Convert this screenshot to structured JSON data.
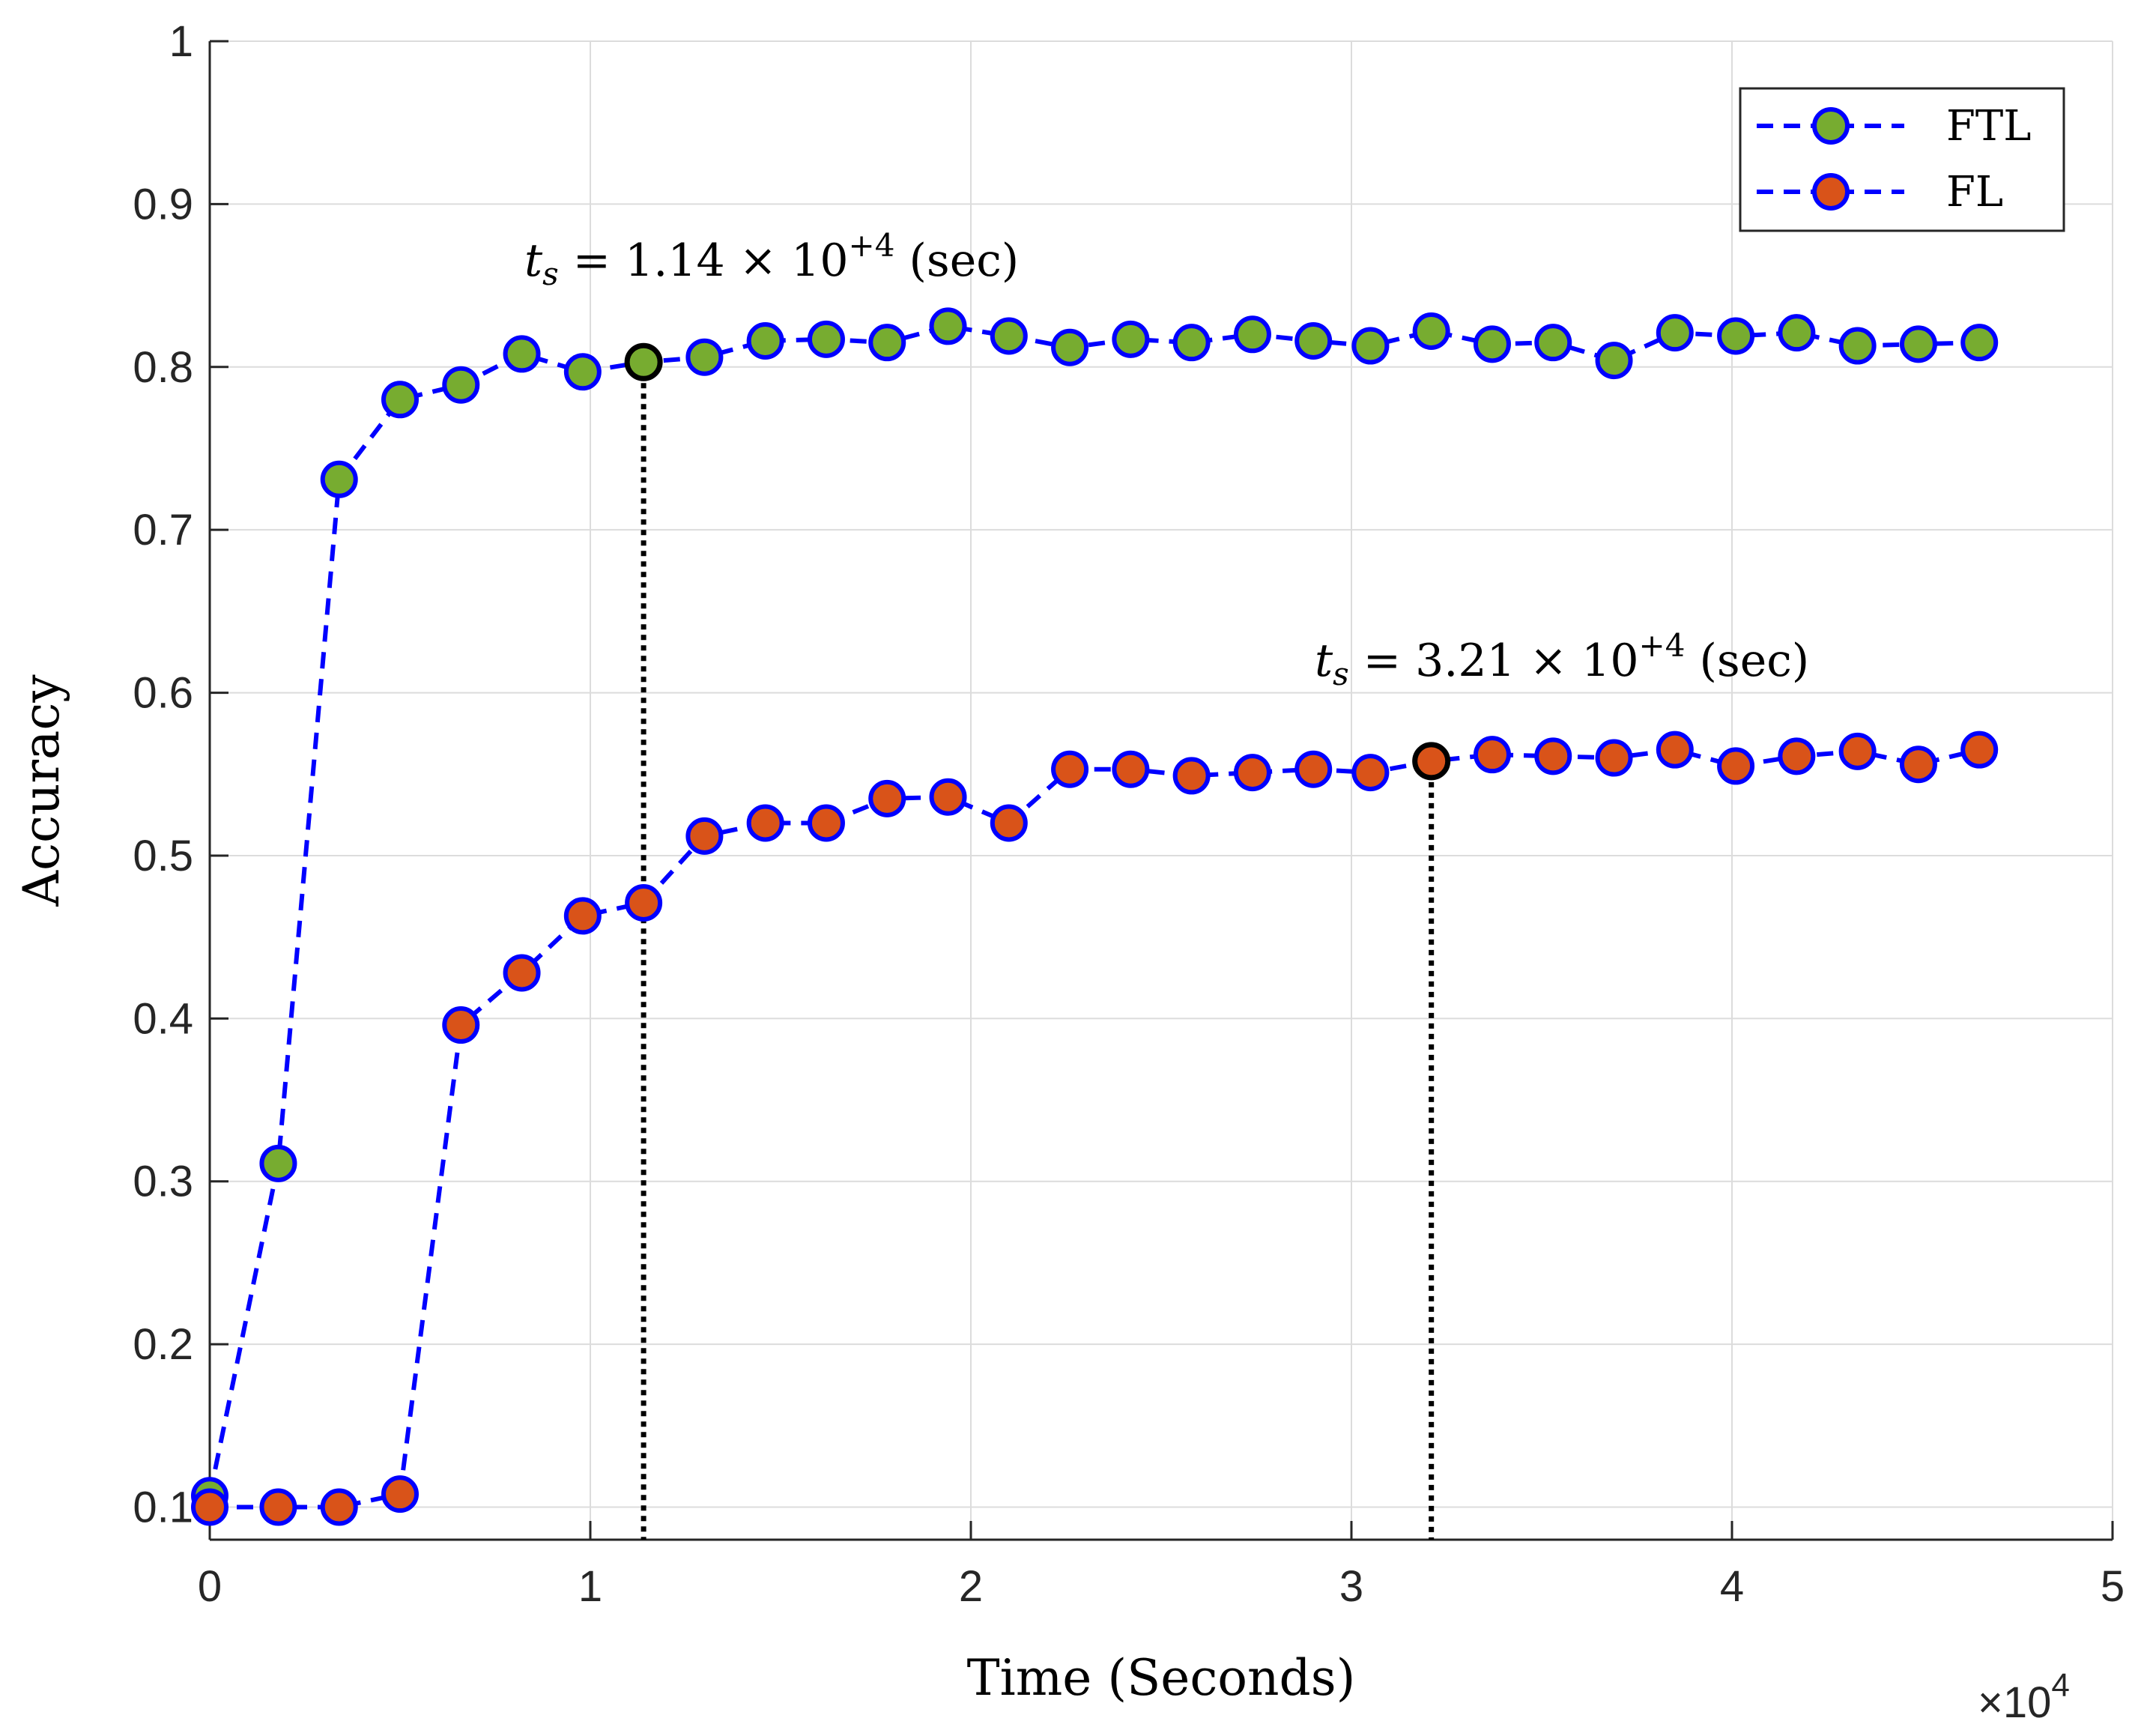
{
  "chart_data": {
    "type": "line",
    "title": "",
    "xlabel": "Time (Seconds)",
    "ylabel": "Accuracy",
    "x_multiplier_label": "×10",
    "x_multiplier_exp": "4",
    "xlim": [
      0,
      5
    ],
    "ylim": [
      0.08,
      1.0
    ],
    "xticks": [
      0,
      1,
      2,
      3,
      4,
      5
    ],
    "xtick_labels": [
      "0",
      "1",
      "2",
      "3",
      "4",
      "5"
    ],
    "yticks": [
      0.1,
      0.2,
      0.3,
      0.4,
      0.5,
      0.6,
      0.7,
      0.8,
      0.9,
      1.0
    ],
    "ytick_labels": [
      "0.1",
      "0.2",
      "0.3",
      "0.4",
      "0.5",
      "0.6",
      "0.7",
      "0.8",
      "0.9",
      "1"
    ],
    "grid": true,
    "legend_position": "top-right",
    "line_color": "#0000ff",
    "marker_edge_color": "#0000ff",
    "series": [
      {
        "name": "FTL",
        "marker_face_color": "#77ac30",
        "x": [
          0,
          0.18,
          0.34,
          0.5,
          0.66,
          0.82,
          0.98,
          1.14,
          1.3,
          1.46,
          1.62,
          1.78,
          1.94,
          2.1,
          2.26,
          2.42,
          2.58,
          2.74,
          2.9,
          3.05,
          3.21,
          3.37,
          3.53,
          3.69,
          3.85,
          4.01,
          4.17,
          4.33,
          4.49,
          4.65
        ],
        "values": [
          0.107,
          0.311,
          0.731,
          0.78,
          0.789,
          0.808,
          0.797,
          0.803,
          0.806,
          0.816,
          0.817,
          0.815,
          0.825,
          0.819,
          0.812,
          0.817,
          0.815,
          0.82,
          0.816,
          0.813,
          0.822,
          0.814,
          0.815,
          0.804,
          0.821,
          0.819,
          0.821,
          0.813,
          0.814,
          0.815
        ]
      },
      {
        "name": "FL",
        "marker_face_color": "#d95319",
        "x": [
          0,
          0.18,
          0.34,
          0.5,
          0.66,
          0.82,
          0.98,
          1.14,
          1.3,
          1.46,
          1.62,
          1.78,
          1.94,
          2.1,
          2.26,
          2.42,
          2.58,
          2.74,
          2.9,
          3.05,
          3.21,
          3.37,
          3.53,
          3.69,
          3.85,
          4.01,
          4.17,
          4.33,
          4.49,
          4.65
        ],
        "values": [
          0.1,
          0.1,
          0.1,
          0.108,
          0.396,
          0.428,
          0.463,
          0.471,
          0.512,
          0.52,
          0.52,
          0.535,
          0.536,
          0.52,
          0.553,
          0.553,
          0.549,
          0.551,
          0.553,
          0.551,
          0.558,
          0.562,
          0.561,
          0.56,
          0.565,
          0.555,
          0.561,
          0.564,
          0.556,
          0.565
        ]
      }
    ],
    "annotations": [
      {
        "series": "FTL",
        "x": 1.14,
        "y": 0.803,
        "var": "t",
        "sub": "s",
        "eq": "=",
        "value": "1.14",
        "times": "×",
        "base": "10",
        "exp": "+4",
        "unit": "(sec)"
      },
      {
        "series": "FL",
        "x": 3.21,
        "y": 0.558,
        "var": "t",
        "sub": "s",
        "eq": "=",
        "value": "3.21",
        "times": "×",
        "base": "10",
        "exp": "+4",
        "unit": "(sec)"
      }
    ]
  }
}
